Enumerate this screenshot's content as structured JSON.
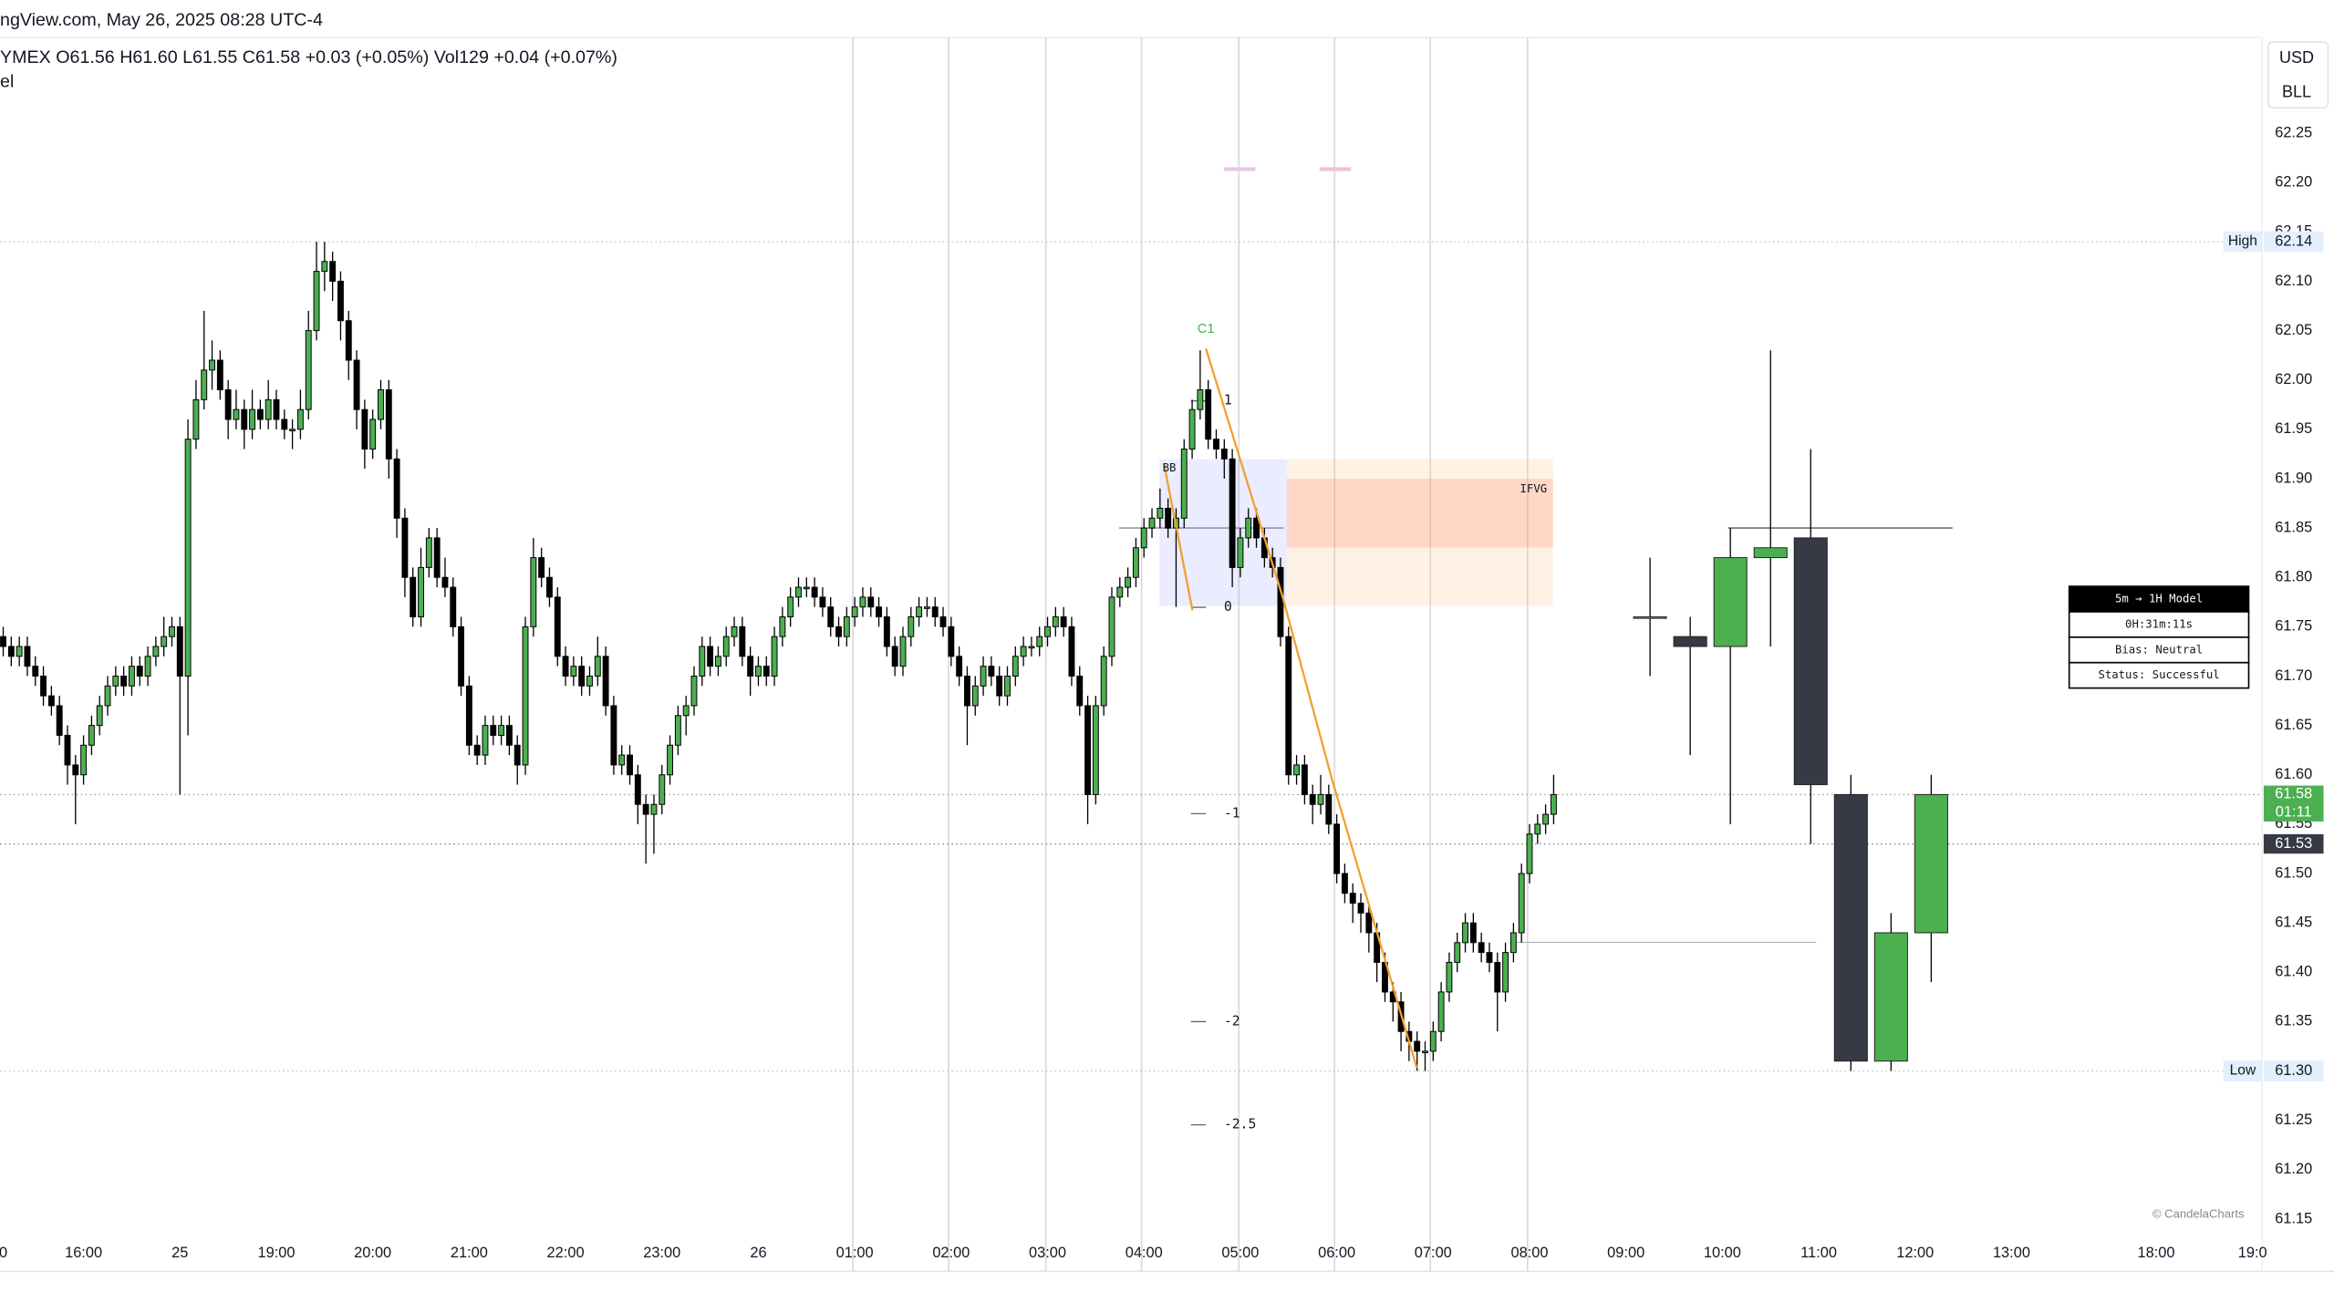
{
  "header": {
    "source": "ngView.com, May 26, 2025 08:28 UTC-4",
    "legend": "YMEX O61.56 H61.60 L61.55 C61.58 +0.03 (+0.05%) Vol129 +0.04 (+0.07%)",
    "indicator": "el",
    "currency": "USD",
    "unit": "BLL",
    "watermark": "© CandelaCharts"
  },
  "model_table": [
    "5m → 1H Model",
    "0H:31m:11s",
    "Bias: Neutral",
    "Status: Successful"
  ],
  "annotations": {
    "c1": "C1",
    "bb": "BB",
    "ifvg": "IFVG",
    "fib": [
      "1",
      "0",
      "-1",
      "-2",
      "-2.5"
    ]
  },
  "chart_data": {
    "type": "candlestick",
    "up_color": "#4caf50",
    "down_color": "#000000",
    "htf_down_color": "#363a45",
    "grid": false,
    "xlim": [
      -0.4,
      281.2
    ],
    "ylim": [
      61.1,
      62.35
    ],
    "xticks": [
      {
        "value": 0,
        "label": "0"
      },
      {
        "value": 10,
        "label": "16:00"
      },
      {
        "value": 22,
        "label": "25"
      },
      {
        "value": 34,
        "label": "19:00"
      },
      {
        "value": 46,
        "label": "20:00"
      },
      {
        "value": 58,
        "label": "21:00"
      },
      {
        "value": 70,
        "label": "22:00"
      },
      {
        "value": 82,
        "label": "23:00"
      },
      {
        "value": 94,
        "label": "26"
      },
      {
        "value": 106,
        "label": "01:00"
      },
      {
        "value": 118,
        "label": "02:00"
      },
      {
        "value": 130,
        "label": "03:00"
      },
      {
        "value": 142,
        "label": "04:00"
      },
      {
        "value": 154,
        "label": "05:00"
      },
      {
        "value": 166,
        "label": "06:00"
      },
      {
        "value": 178,
        "label": "07:00"
      },
      {
        "value": 190,
        "label": "08:00"
      },
      {
        "value": 202,
        "label": "09:00"
      },
      {
        "value": 214,
        "label": "10:00"
      },
      {
        "value": 226,
        "label": "11:00"
      },
      {
        "value": 238,
        "label": "12:00"
      },
      {
        "value": 250,
        "label": "13:00"
      },
      {
        "value": 268,
        "label": "18:00"
      },
      {
        "value": 280,
        "label": "19:0"
      }
    ],
    "yticks": [
      61.15,
      {
        "value": 61.2,
        "label": "61.20"
      },
      61.25,
      {
        "value": 61.3,
        "label": "61.30"
      },
      61.35,
      {
        "value": 61.4,
        "label": "61.40"
      },
      61.45,
      {
        "value": 61.5,
        "label": "61.50"
      },
      61.55,
      {
        "value": 61.6,
        "label": "61.60"
      },
      61.65,
      {
        "value": 61.7,
        "label": "61.70"
      },
      61.75,
      {
        "value": 61.8,
        "label": "61.80"
      },
      61.85,
      {
        "value": 61.9,
        "label": "61.90"
      },
      61.95,
      {
        "value": 62,
        "label": "62.00"
      },
      62.05,
      {
        "value": 62.1,
        "label": "62.10"
      },
      62.15,
      {
        "value": 62.2,
        "label": "62.20"
      },
      62.25
    ],
    "price_labels": [
      {
        "name": "High",
        "value": 62.14
      },
      {
        "name": "Low",
        "value": 61.3,
        "label": "61.30"
      }
    ],
    "last_price": {
      "value": 61.58,
      "countdown": "01:11"
    },
    "prev_price": {
      "value": 61.53
    },
    "htf_ohlc": [
      [
        61.76,
        61.82,
        61.7,
        61.76
      ],
      [
        61.74,
        61.76,
        61.62,
        61.73
      ],
      [
        61.73,
        61.85,
        61.55,
        61.82
      ],
      [
        61.82,
        62.03,
        61.73,
        61.83
      ],
      [
        61.84,
        61.93,
        61.53,
        61.59
      ],
      [
        61.58,
        61.6,
        61.3,
        61.31
      ],
      [
        61.31,
        61.46,
        61.3,
        61.44
      ],
      [
        61.44,
        61.6,
        61.39,
        61.58
      ]
    ],
    "ohlc": [
      [
        61.74,
        61.75,
        61.72,
        61.73
      ],
      [
        61.73,
        61.74,
        61.71,
        61.72
      ],
      [
        61.72,
        61.74,
        61.71,
        61.73
      ],
      [
        61.73,
        61.74,
        61.7,
        61.71
      ],
      [
        61.71,
        61.72,
        61.69,
        61.7
      ],
      [
        61.7,
        61.71,
        61.67,
        61.68
      ],
      [
        61.68,
        61.69,
        61.66,
        61.67
      ],
      [
        61.67,
        61.68,
        61.63,
        61.64
      ],
      [
        61.64,
        61.65,
        61.59,
        61.61
      ],
      [
        61.61,
        61.62,
        61.55,
        61.6
      ],
      [
        61.6,
        61.64,
        61.59,
        61.63
      ],
      [
        61.63,
        61.66,
        61.62,
        61.65
      ],
      [
        61.65,
        61.68,
        61.64,
        61.67
      ],
      [
        61.67,
        61.7,
        61.66,
        61.69
      ],
      [
        61.69,
        61.71,
        61.68,
        61.7
      ],
      [
        61.7,
        61.71,
        61.68,
        61.69
      ],
      [
        61.69,
        61.72,
        61.68,
        61.71
      ],
      [
        61.71,
        61.72,
        61.69,
        61.7
      ],
      [
        61.7,
        61.73,
        61.69,
        61.72
      ],
      [
        61.72,
        61.74,
        61.71,
        61.73
      ],
      [
        61.73,
        61.76,
        61.72,
        61.74
      ],
      [
        61.74,
        61.76,
        61.73,
        61.75
      ],
      [
        61.75,
        61.76,
        61.58,
        61.7
      ],
      [
        61.7,
        61.96,
        61.64,
        61.94
      ],
      [
        61.94,
        62.0,
        61.93,
        61.98
      ],
      [
        61.98,
        62.07,
        61.97,
        62.01
      ],
      [
        62.01,
        62.04,
        61.99,
        62.02
      ],
      [
        62.02,
        62.03,
        61.98,
        61.99
      ],
      [
        61.99,
        62.0,
        61.94,
        61.96
      ],
      [
        61.96,
        61.99,
        61.95,
        61.97
      ],
      [
        61.97,
        61.98,
        61.93,
        61.95
      ],
      [
        61.95,
        61.99,
        61.94,
        61.97
      ],
      [
        61.97,
        61.98,
        61.95,
        61.96
      ],
      [
        61.96,
        62.0,
        61.95,
        61.98
      ],
      [
        61.98,
        61.99,
        61.95,
        61.96
      ],
      [
        61.96,
        61.97,
        61.94,
        61.95
      ],
      [
        61.95,
        61.96,
        61.93,
        61.95
      ],
      [
        61.95,
        61.99,
        61.94,
        61.97
      ],
      [
        61.97,
        62.07,
        61.96,
        62.05
      ],
      [
        62.05,
        62.14,
        62.04,
        62.11
      ],
      [
        62.11,
        62.14,
        62.09,
        62.12
      ],
      [
        62.12,
        62.13,
        62.08,
        62.1
      ],
      [
        62.1,
        62.11,
        62.04,
        62.06
      ],
      [
        62.06,
        62.07,
        62.0,
        62.02
      ],
      [
        62.02,
        62.03,
        61.95,
        61.97
      ],
      [
        61.97,
        61.98,
        61.91,
        61.93
      ],
      [
        61.93,
        61.97,
        61.92,
        61.96
      ],
      [
        61.96,
        62.0,
        61.95,
        61.99
      ],
      [
        61.99,
        62.0,
        61.9,
        61.92
      ],
      [
        61.92,
        61.93,
        61.84,
        61.86
      ],
      [
        61.86,
        61.87,
        61.78,
        61.8
      ],
      [
        61.8,
        61.81,
        61.75,
        61.76
      ],
      [
        61.76,
        61.83,
        61.75,
        61.81
      ],
      [
        61.81,
        61.85,
        61.8,
        61.84
      ],
      [
        61.84,
        61.85,
        61.79,
        61.8
      ],
      [
        61.8,
        61.82,
        61.78,
        61.79
      ],
      [
        61.79,
        61.8,
        61.74,
        61.75
      ],
      [
        61.75,
        61.76,
        61.68,
        61.69
      ],
      [
        61.69,
        61.7,
        61.62,
        61.63
      ],
      [
        61.63,
        61.64,
        61.61,
        61.62
      ],
      [
        61.62,
        61.66,
        61.61,
        61.65
      ],
      [
        61.65,
        61.66,
        61.63,
        61.64
      ],
      [
        61.64,
        61.66,
        61.63,
        61.65
      ],
      [
        61.65,
        61.66,
        61.62,
        61.63
      ],
      [
        61.63,
        61.64,
        61.59,
        61.61
      ],
      [
        61.61,
        61.76,
        61.6,
        61.75
      ],
      [
        61.75,
        61.84,
        61.74,
        61.82
      ],
      [
        61.82,
        61.83,
        61.79,
        61.8
      ],
      [
        61.8,
        61.81,
        61.77,
        61.78
      ],
      [
        61.78,
        61.79,
        61.71,
        61.72
      ],
      [
        61.72,
        61.73,
        61.69,
        61.7
      ],
      [
        61.7,
        61.72,
        61.69,
        61.71
      ],
      [
        61.71,
        61.72,
        61.68,
        61.69
      ],
      [
        61.69,
        61.71,
        61.68,
        61.7
      ],
      [
        61.7,
        61.74,
        61.69,
        61.72
      ],
      [
        61.72,
        61.73,
        61.66,
        61.67
      ],
      [
        61.67,
        61.68,
        61.6,
        61.61
      ],
      [
        61.61,
        61.63,
        61.6,
        61.62
      ],
      [
        61.62,
        61.63,
        61.59,
        61.6
      ],
      [
        61.6,
        61.61,
        61.55,
        61.57
      ],
      [
        61.57,
        61.58,
        61.51,
        61.56
      ],
      [
        61.56,
        61.58,
        61.52,
        61.57
      ],
      [
        61.57,
        61.61,
        61.56,
        61.6
      ],
      [
        61.6,
        61.64,
        61.59,
        61.63
      ],
      [
        61.63,
        61.67,
        61.62,
        61.66
      ],
      [
        61.66,
        61.68,
        61.64,
        61.67
      ],
      [
        61.67,
        61.71,
        61.66,
        61.7
      ],
      [
        61.7,
        61.74,
        61.69,
        61.73
      ],
      [
        61.73,
        61.74,
        61.7,
        61.71
      ],
      [
        61.71,
        61.73,
        61.7,
        61.72
      ],
      [
        61.72,
        61.75,
        61.71,
        61.74
      ],
      [
        61.74,
        61.76,
        61.73,
        61.75
      ],
      [
        61.75,
        61.76,
        61.71,
        61.72
      ],
      [
        61.72,
        61.73,
        61.68,
        61.7
      ],
      [
        61.7,
        61.72,
        61.69,
        61.71
      ],
      [
        61.71,
        61.72,
        61.69,
        61.7
      ],
      [
        61.7,
        61.75,
        61.69,
        61.74
      ],
      [
        61.74,
        61.77,
        61.73,
        61.76
      ],
      [
        61.76,
        61.79,
        61.75,
        61.78
      ],
      [
        61.78,
        61.8,
        61.77,
        61.79
      ],
      [
        61.79,
        61.8,
        61.78,
        61.79
      ],
      [
        61.79,
        61.8,
        61.77,
        61.78
      ],
      [
        61.78,
        61.79,
        61.76,
        61.77
      ],
      [
        61.77,
        61.78,
        61.74,
        61.75
      ],
      [
        61.75,
        61.76,
        61.73,
        61.74
      ],
      [
        61.74,
        61.77,
        61.73,
        61.76
      ],
      [
        61.76,
        61.78,
        61.75,
        61.77
      ],
      [
        61.77,
        61.79,
        61.76,
        61.78
      ],
      [
        61.78,
        61.79,
        61.76,
        61.77
      ],
      [
        61.77,
        61.78,
        61.75,
        61.76
      ],
      [
        61.76,
        61.77,
        61.72,
        61.73
      ],
      [
        61.73,
        61.74,
        61.7,
        61.71
      ],
      [
        61.71,
        61.75,
        61.7,
        61.74
      ],
      [
        61.74,
        61.77,
        61.73,
        61.76
      ],
      [
        61.76,
        61.78,
        61.75,
        61.77
      ],
      [
        61.77,
        61.78,
        61.76,
        61.77
      ],
      [
        61.77,
        61.78,
        61.75,
        61.76
      ],
      [
        61.76,
        61.77,
        61.74,
        61.75
      ],
      [
        61.75,
        61.76,
        61.71,
        61.72
      ],
      [
        61.72,
        61.73,
        61.69,
        61.7
      ],
      [
        61.7,
        61.71,
        61.63,
        61.67
      ],
      [
        61.67,
        61.7,
        61.66,
        61.69
      ],
      [
        61.69,
        61.72,
        61.68,
        61.71
      ],
      [
        61.71,
        61.72,
        61.69,
        61.7
      ],
      [
        61.7,
        61.71,
        61.67,
        61.68
      ],
      [
        61.68,
        61.71,
        61.67,
        61.7
      ],
      [
        61.7,
        61.73,
        61.69,
        61.72
      ],
      [
        61.72,
        61.74,
        61.71,
        61.73
      ],
      [
        61.73,
        61.74,
        61.72,
        61.73
      ],
      [
        61.73,
        61.75,
        61.72,
        61.74
      ],
      [
        61.74,
        61.76,
        61.73,
        61.75
      ],
      [
        61.75,
        61.77,
        61.74,
        61.76
      ],
      [
        61.76,
        61.77,
        61.74,
        61.75
      ],
      [
        61.75,
        61.76,
        61.69,
        61.7
      ],
      [
        61.7,
        61.71,
        61.66,
        61.67
      ],
      [
        61.67,
        61.68,
        61.55,
        61.58
      ],
      [
        61.58,
        61.68,
        61.57,
        61.67
      ],
      [
        61.67,
        61.73,
        61.66,
        61.72
      ],
      [
        61.72,
        61.79,
        61.71,
        61.78
      ],
      [
        61.78,
        61.8,
        61.77,
        61.79
      ],
      [
        61.79,
        61.81,
        61.78,
        61.8
      ],
      [
        61.8,
        61.84,
        61.79,
        61.83
      ],
      [
        61.83,
        61.86,
        61.82,
        61.85
      ],
      [
        61.85,
        61.87,
        61.84,
        61.86
      ],
      [
        61.86,
        61.89,
        61.85,
        61.87
      ],
      [
        61.87,
        61.88,
        61.84,
        61.85
      ],
      [
        61.85,
        61.87,
        61.77,
        61.86
      ],
      [
        61.86,
        61.94,
        61.85,
        61.93
      ],
      [
        61.93,
        61.98,
        61.92,
        61.97
      ],
      [
        61.97,
        62.03,
        61.96,
        61.99
      ],
      [
        61.99,
        62.0,
        61.93,
        61.94
      ],
      [
        61.94,
        61.95,
        61.92,
        61.93
      ],
      [
        61.93,
        61.94,
        61.9,
        61.92
      ],
      [
        61.92,
        61.93,
        61.79,
        61.81
      ],
      [
        61.81,
        61.85,
        61.8,
        61.84
      ],
      [
        61.84,
        61.87,
        61.83,
        61.86
      ],
      [
        61.86,
        61.87,
        61.83,
        61.84
      ],
      [
        61.84,
        61.85,
        61.81,
        61.82
      ],
      [
        61.82,
        61.83,
        61.8,
        61.81
      ],
      [
        61.81,
        61.82,
        61.73,
        61.74
      ],
      [
        61.74,
        61.75,
        61.59,
        61.6
      ],
      [
        61.6,
        61.62,
        61.59,
        61.61
      ],
      [
        61.61,
        61.62,
        61.57,
        61.58
      ],
      [
        61.58,
        61.59,
        61.55,
        61.57
      ],
      [
        61.57,
        61.6,
        61.56,
        61.58
      ],
      [
        61.58,
        61.59,
        61.54,
        61.55
      ],
      [
        61.55,
        61.56,
        61.49,
        61.5
      ],
      [
        61.5,
        61.51,
        61.47,
        61.48
      ],
      [
        61.48,
        61.49,
        61.45,
        61.47
      ],
      [
        61.47,
        61.48,
        61.44,
        61.46
      ],
      [
        61.46,
        61.47,
        61.42,
        61.44
      ],
      [
        61.44,
        61.45,
        61.39,
        61.41
      ],
      [
        61.41,
        61.42,
        61.37,
        61.38
      ],
      [
        61.38,
        61.39,
        61.35,
        61.37
      ],
      [
        61.37,
        61.38,
        61.32,
        61.34
      ],
      [
        61.34,
        61.35,
        61.31,
        61.33
      ],
      [
        61.33,
        61.34,
        61.3,
        61.32
      ],
      [
        61.32,
        61.33,
        61.3,
        61.32
      ],
      [
        61.32,
        61.35,
        61.31,
        61.34
      ],
      [
        61.34,
        61.39,
        61.33,
        61.38
      ],
      [
        61.38,
        61.42,
        61.37,
        61.41
      ],
      [
        61.41,
        61.44,
        61.4,
        61.43
      ],
      [
        61.43,
        61.46,
        61.42,
        61.45
      ],
      [
        61.45,
        61.46,
        61.42,
        61.43
      ],
      [
        61.43,
        61.44,
        61.41,
        61.42
      ],
      [
        61.42,
        61.43,
        61.4,
        61.41
      ],
      [
        61.41,
        61.42,
        61.34,
        61.38
      ],
      [
        61.38,
        61.43,
        61.37,
        61.42
      ],
      [
        61.42,
        61.45,
        61.41,
        61.44
      ],
      [
        61.44,
        61.51,
        61.43,
        61.5
      ],
      [
        61.5,
        61.55,
        61.49,
        61.54
      ],
      [
        61.54,
        61.56,
        61.53,
        61.55
      ],
      [
        61.55,
        61.57,
        61.54,
        61.56
      ],
      [
        61.56,
        61.6,
        61.55,
        61.58
      ]
    ]
  }
}
